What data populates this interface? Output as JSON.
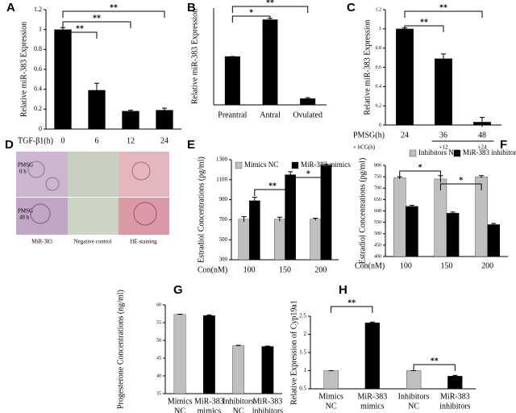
{
  "chart_data": [
    {
      "type": "bar",
      "panel": "A",
      "ylabel": "Relative miR-383 Expression",
      "xlabel": "TGF-β1(h)",
      "categories": [
        "0",
        "6",
        "12",
        "24"
      ],
      "series": [
        {
          "color": "#000000",
          "values": [
            1.0,
            0.39,
            0.18,
            0.19
          ],
          "errors": [
            0.02,
            0.07,
            0.01,
            0.02
          ]
        }
      ],
      "ylim": [
        0,
        1.2
      ],
      "yticks": [
        0,
        0.2,
        0.4,
        0.6,
        0.8,
        1,
        1.2
      ],
      "annotations": [
        "**",
        "**",
        "**"
      ]
    },
    {
      "type": "bar",
      "panel": "B",
      "ylabel": "Relative miR-383 Expression",
      "categories": [
        "Preantral",
        "Antral",
        "Ovulated"
      ],
      "series": [
        {
          "color": "#000000",
          "values": [
            1.0,
            1.76,
            0.13
          ],
          "errors": [
            0.0,
            0.03,
            0.02
          ]
        }
      ],
      "ylim": [
        0,
        2
      ],
      "annotations": [
        "*",
        "**"
      ]
    },
    {
      "type": "bar",
      "panel": "C",
      "ylabel": "Relative miR-383 Expression",
      "xlabel": "PMSG(h)",
      "xlabel2": "+ hCG(h)",
      "categories": [
        "24",
        "36",
        "48"
      ],
      "sub_categories": [
        null,
        "+12",
        "+24"
      ],
      "series": [
        {
          "color": "#000000",
          "values": [
            1.0,
            0.69,
            0.03
          ],
          "errors": [
            0.01,
            0.05,
            0.05
          ]
        }
      ],
      "ylim": [
        0,
        1.2
      ],
      "yticks": [
        0,
        0.2,
        0.4,
        0.6,
        0.8,
        1,
        1.2
      ],
      "annotations": [
        "**",
        "**"
      ]
    },
    {
      "type": "bar",
      "panel": "E",
      "ylabel": "Estradiol Concentrations (pg/ml)",
      "xlabel": "Con(nM)",
      "categories": [
        "100",
        "150",
        "200"
      ],
      "series": [
        {
          "name": "Mimics NC",
          "color": "#bfbfbf",
          "values": [
            705,
            705,
            705
          ],
          "errors": [
            25,
            20,
            10
          ]
        },
        {
          "name": "MiR-383 mimics",
          "color": "#000000",
          "values": [
            890,
            1150,
            1245
          ],
          "errors": [
            35,
            30,
            10
          ]
        }
      ],
      "ylim": [
        300,
        1300
      ],
      "yticks": [
        300,
        500,
        700,
        900,
        1100,
        1300
      ],
      "annotations": [
        "**",
        "*"
      ]
    },
    {
      "type": "bar",
      "panel": "F",
      "ylabel": "Estradiol Concentrations (pg/ml)",
      "xlabel": "Con(nM)",
      "categories": [
        "100",
        "150",
        "200"
      ],
      "series": [
        {
          "name": "Inhibitors NC",
          "color": "#bfbfbf",
          "values": [
            745,
            740,
            750
          ],
          "errors": [
            5,
            15,
            5
          ]
        },
        {
          "name": "MiR-383 inhibitors",
          "color": "#000000",
          "values": [
            620,
            590,
            540
          ],
          "errors": [
            5,
            5,
            5
          ]
        }
      ],
      "ylim": [
        400,
        800
      ],
      "yticks": [
        400,
        450,
        500,
        550,
        600,
        650,
        700,
        750,
        800
      ],
      "annotations": [
        "*",
        "*"
      ]
    },
    {
      "type": "bar",
      "panel": "G",
      "ylabel": "Progesterone Concentrations (ng/ml)",
      "categories": [
        [
          "Mimics",
          "NC"
        ],
        [
          "MiR-383",
          "mimics"
        ],
        [
          "Inhibitors",
          "NC"
        ],
        [
          "MiR-383",
          "inhibitors"
        ]
      ],
      "series": [
        {
          "color": [
            "#bfbfbf",
            "#000000",
            "#bfbfbf",
            "#000000"
          ],
          "values": [
            57.3,
            57.0,
            48.5,
            48.3
          ],
          "errors": [
            0.1,
            0.2,
            0.1,
            0.1
          ]
        }
      ],
      "ylim": [
        35,
        60
      ],
      "yticks": [
        35,
        40,
        45,
        50,
        55,
        60
      ]
    },
    {
      "type": "bar",
      "panel": "H",
      "ylabel": "Relative Expression of Cyp19a1",
      "categories": [
        [
          "Mimics",
          "NC"
        ],
        [
          "MiR-383",
          "mimics"
        ],
        [
          "Inhibitors",
          "NC"
        ],
        [
          "MiR-383",
          "inhibitors"
        ]
      ],
      "series": [
        {
          "color": [
            "#bfbfbf",
            "#000000",
            "#bfbfbf",
            "#000000"
          ],
          "values": [
            1.0,
            2.32,
            1.0,
            0.85
          ],
          "errors": [
            0.0,
            0.02,
            0.0,
            0.02
          ]
        }
      ],
      "ylim": [
        0.5,
        2.5
      ],
      "yticks": [
        0.5,
        1,
        1.5,
        2,
        2.5
      ],
      "annotations": [
        "**",
        "**"
      ]
    }
  ],
  "image_panel": {
    "panel": "D",
    "rows": [
      [
        "PMSG",
        "0 h"
      ],
      [
        "PMSG",
        "48 h"
      ]
    ],
    "columns": [
      "MiR-383",
      "Negative control",
      "HE staining"
    ]
  }
}
